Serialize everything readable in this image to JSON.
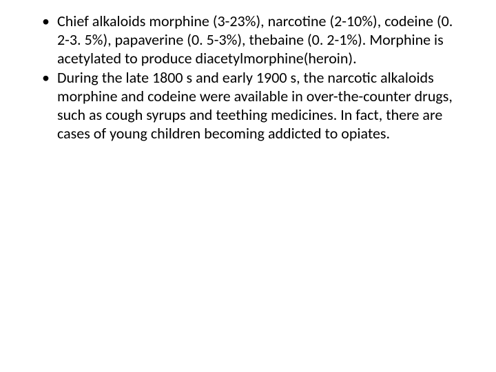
{
  "slide": {
    "background_color": "#ffffff",
    "text_color": "#000000",
    "font_family": "Calibri",
    "font_size_pt": 22,
    "line_height": 1.22,
    "bullet_char": "•",
    "bullets": [
      {
        "text": "Chief alkaloids morphine (3-23%), narcotine (2-10%), codeine (0. 2-3. 5%), papaverine (0. 5-3%), thebaine (0. 2-1%). Morphine is acetylated to produce diacetylmorphine(heroin)."
      },
      {
        "text": " During the late 1800 s and early 1900 s, the narcotic alkaloids morphine and codeine were available in over-the-counter drugs, such as cough syrups and teething medicines. In fact, there are cases of young children becoming addicted to opiates."
      }
    ]
  }
}
